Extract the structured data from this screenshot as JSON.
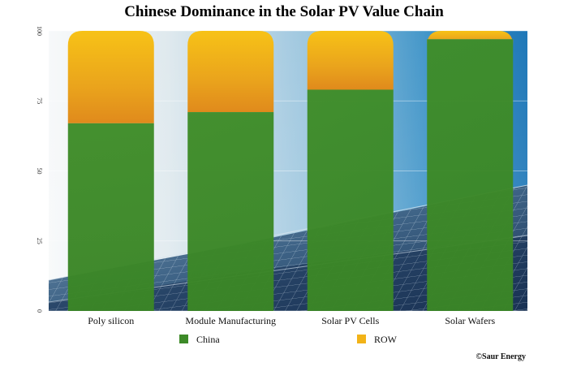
{
  "chart_data": {
    "type": "bar",
    "stacked": true,
    "title": "Chinese Dominance in the Solar PV Value Chain",
    "categories": [
      "Poly silicon",
      "Module Manufacturing",
      "Solar PV Cells",
      "Solar Wafers"
    ],
    "series": [
      {
        "name": "China",
        "values": [
          67,
          71,
          79,
          97
        ],
        "color": "#3d8a28"
      },
      {
        "name": "ROW",
        "values": [
          33,
          29,
          21,
          3
        ],
        "color": "#f0b21a"
      }
    ],
    "ylim": [
      0,
      100
    ],
    "yticks": [
      "0",
      "25",
      "50",
      "75",
      "100"
    ],
    "grid": true,
    "legend_position": "bottom",
    "background": "solar panel photo"
  },
  "credit": "©Saur Energy"
}
